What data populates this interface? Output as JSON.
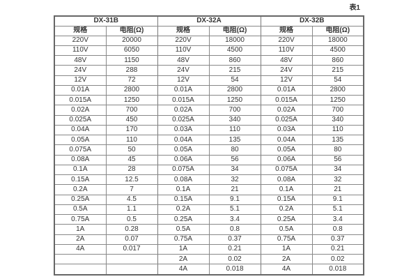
{
  "caption": "表1",
  "colors": {
    "background": "#ffffff",
    "text": "#333333",
    "border_inner": "#888888",
    "border_outer": "#666666"
  },
  "table": {
    "groups": [
      {
        "name": "DX-31B",
        "spec_header": "规格",
        "res_header": "电阻(Ω)"
      },
      {
        "name": "DX-32A",
        "spec_header": "规格",
        "res_header": "电阻(Ω)"
      },
      {
        "name": "DX-32B",
        "spec_header": "规格",
        "res_header": "电阻(Ω)"
      }
    ],
    "rows": [
      [
        "220V",
        "20000",
        "220V",
        "18000",
        "220V",
        "18000"
      ],
      [
        "110V",
        "6050",
        "110V",
        "4500",
        "110V",
        "4500"
      ],
      [
        "48V",
        "1150",
        "48V",
        "860",
        "48V",
        "860"
      ],
      [
        "24V",
        "288",
        "24V",
        "215",
        "24V",
        "215"
      ],
      [
        "12V",
        "72",
        "12V",
        "54",
        "12V",
        "54"
      ],
      [
        "0.01A",
        "2800",
        "0.01A",
        "2800",
        "0.01A",
        "2800"
      ],
      [
        "0.015A",
        "1250",
        "0.015A",
        "1250",
        "0.015A",
        "1250"
      ],
      [
        "0.02A",
        "700",
        "0.02A",
        "700",
        "0.02A",
        "700"
      ],
      [
        "0.025A",
        "450",
        "0.025A",
        "340",
        "0.025A",
        "340"
      ],
      [
        "0.04A",
        "170",
        "0.03A",
        "110",
        "0.03A",
        "110"
      ],
      [
        "0.05A",
        "110",
        "0.04A",
        "135",
        "0.04A",
        "135"
      ],
      [
        "0.075A",
        "50",
        "0.05A",
        "80",
        "0.05A",
        "80"
      ],
      [
        "0.08A",
        "45",
        "0.06A",
        "56",
        "0.06A",
        "56"
      ],
      [
        "0.1A",
        "28",
        "0.075A",
        "34",
        "0.075A",
        "34"
      ],
      [
        "0.15A",
        "12.5",
        "0.08A",
        "32",
        "0.08A",
        "32"
      ],
      [
        "0.2A",
        "7",
        "0.1A",
        "21",
        "0.1A",
        "21"
      ],
      [
        "0.25A",
        "4.5",
        "0.15A",
        "9.1",
        "0.15A",
        "9.1"
      ],
      [
        "0.5A",
        "1.1",
        "0.2A",
        "5.1",
        "0.2A",
        "5.1"
      ],
      [
        "0.75A",
        "0.5",
        "0.25A",
        "3.4",
        "0.25A",
        "3.4"
      ],
      [
        "1A",
        "0.28",
        "0.5A",
        "0.8",
        "0.5A",
        "0.8"
      ],
      [
        "2A",
        "0.07",
        "0.75A",
        "0.37",
        "0.75A",
        "0.37"
      ],
      [
        "4A",
        "0.017",
        "1A",
        "0.21",
        "1A",
        "0.21"
      ],
      [
        "",
        "",
        "2A",
        "0.02",
        "2A",
        "0.02"
      ],
      [
        "",
        "",
        "4A",
        "0.018",
        "4A",
        "0.018"
      ]
    ]
  }
}
